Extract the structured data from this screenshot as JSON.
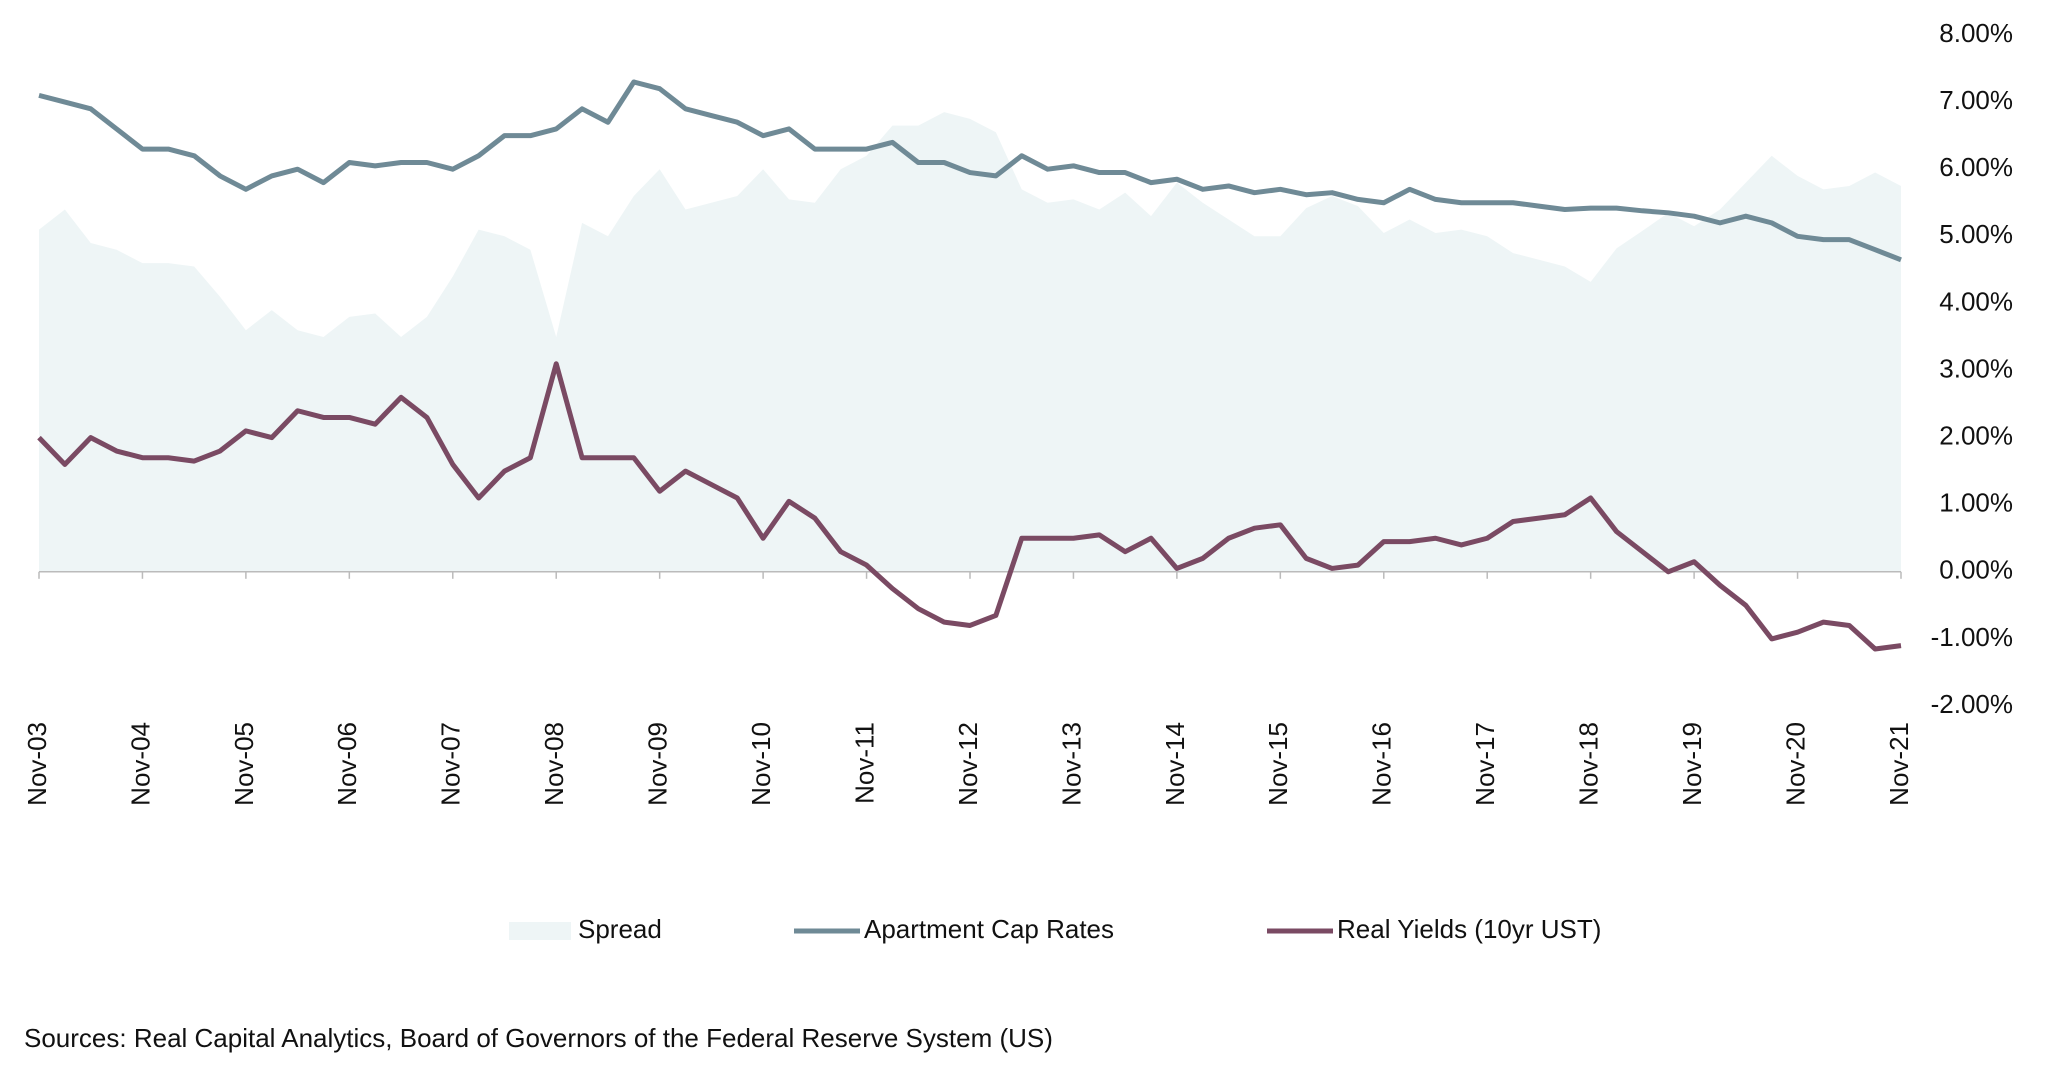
{
  "chart_data": {
    "type": "line",
    "categories": [
      "Nov-03",
      null,
      null,
      null,
      "Nov-04",
      null,
      null,
      null,
      "Nov-05",
      null,
      null,
      null,
      "Nov-06",
      null,
      null,
      null,
      "Nov-07",
      null,
      null,
      null,
      "Nov-08",
      null,
      null,
      null,
      "Nov-09",
      null,
      null,
      null,
      "Nov-10",
      null,
      null,
      null,
      "Nov-11",
      null,
      null,
      null,
      "Nov-12",
      null,
      null,
      null,
      "Nov-13",
      null,
      null,
      null,
      "Nov-14",
      null,
      null,
      null,
      "Nov-15",
      null,
      null,
      null,
      "Nov-16",
      null,
      null,
      null,
      "Nov-17",
      null,
      null,
      null,
      "Nov-18",
      null,
      null,
      null,
      "Nov-19",
      null,
      null,
      null,
      "Nov-20",
      null,
      null,
      null,
      "Nov-21"
    ],
    "series": [
      {
        "name": "Spread",
        "type": "area",
        "color": "#eef5f6",
        "values": [
          5.1,
          5.4,
          4.9,
          4.8,
          4.6,
          4.6,
          4.55,
          4.1,
          3.6,
          3.9,
          3.6,
          3.5,
          3.8,
          3.85,
          3.5,
          3.8,
          4.4,
          5.1,
          5.0,
          4.8,
          3.5,
          5.2,
          5.0,
          5.6,
          6.0,
          5.4,
          5.5,
          5.6,
          6.0,
          5.55,
          5.5,
          6.0,
          6.2,
          6.65,
          6.65,
          6.85,
          6.75,
          6.55,
          5.7,
          5.5,
          5.55,
          5.4,
          5.65,
          5.3,
          5.8,
          5.5,
          5.25,
          5.0,
          5.0,
          5.42,
          5.6,
          5.45,
          5.05,
          5.25,
          5.05,
          5.1,
          5.0,
          4.75,
          4.65,
          4.55,
          4.32,
          4.82,
          5.08,
          5.35,
          5.15,
          5.4,
          5.8,
          6.2,
          5.9,
          5.7,
          5.75,
          5.95,
          5.75
        ]
      },
      {
        "name": "Apartment Cap Rates",
        "type": "line",
        "color": "#6f8a96",
        "values": [
          7.1,
          7.0,
          6.9,
          6.6,
          6.3,
          6.3,
          6.2,
          5.9,
          5.7,
          5.9,
          6.0,
          5.8,
          6.1,
          6.05,
          6.1,
          6.1,
          6.0,
          6.2,
          6.5,
          6.5,
          6.6,
          6.9,
          6.7,
          7.3,
          7.2,
          6.9,
          6.8,
          6.7,
          6.5,
          6.6,
          6.3,
          6.3,
          6.3,
          6.4,
          6.1,
          6.1,
          5.95,
          5.9,
          6.2,
          6.0,
          6.05,
          5.95,
          5.95,
          5.8,
          5.85,
          5.7,
          5.75,
          5.65,
          5.7,
          5.62,
          5.65,
          5.55,
          5.5,
          5.7,
          5.55,
          5.5,
          5.5,
          5.5,
          5.45,
          5.4,
          5.42,
          5.42,
          5.38,
          5.35,
          5.3,
          5.2,
          5.3,
          5.2,
          5.0,
          4.95,
          4.95,
          4.8,
          4.65
        ]
      },
      {
        "name": "Real Yields (10yr UST)",
        "type": "line",
        "color": "#7a4a63",
        "values": [
          2.0,
          1.6,
          2.0,
          1.8,
          1.7,
          1.7,
          1.65,
          1.8,
          2.1,
          2.0,
          2.4,
          2.3,
          2.3,
          2.2,
          2.6,
          2.3,
          1.6,
          1.1,
          1.5,
          1.7,
          3.1,
          1.7,
          1.7,
          1.7,
          1.2,
          1.5,
          1.3,
          1.1,
          0.5,
          1.05,
          0.8,
          0.3,
          0.1,
          -0.25,
          -0.55,
          -0.75,
          -0.8,
          -0.65,
          0.5,
          0.5,
          0.5,
          0.55,
          0.3,
          0.5,
          0.05,
          0.2,
          0.5,
          0.65,
          0.7,
          0.2,
          0.05,
          0.1,
          0.45,
          0.45,
          0.5,
          0.4,
          0.5,
          0.75,
          0.8,
          0.85,
          1.1,
          0.6,
          0.3,
          0.0,
          0.15,
          -0.2,
          -0.5,
          -1.0,
          -0.9,
          -0.75,
          -0.8,
          -1.15,
          -1.1
        ]
      }
    ],
    "ylim": [
      -2,
      8
    ],
    "yticks": [
      {
        "value": -2,
        "label": "-2.00%"
      },
      {
        "value": -1,
        "label": "-1.00%"
      },
      {
        "value": 0,
        "label": "0.00%"
      },
      {
        "value": 1,
        "label": "1.00%"
      },
      {
        "value": 2,
        "label": "2.00%"
      },
      {
        "value": 3,
        "label": "3.00%"
      },
      {
        "value": 4,
        "label": "4.00%"
      },
      {
        "value": 5,
        "label": "5.00%"
      },
      {
        "value": 6,
        "label": "6.00%"
      },
      {
        "value": 7,
        "label": "7.00%"
      },
      {
        "value": 8,
        "label": "8.00%"
      }
    ],
    "y_axis_side": "right",
    "grid": false,
    "legend": "bottom",
    "source": "Sources: Real Capital Analytics, Board of Governors of the Federal Reserve System (US)"
  }
}
